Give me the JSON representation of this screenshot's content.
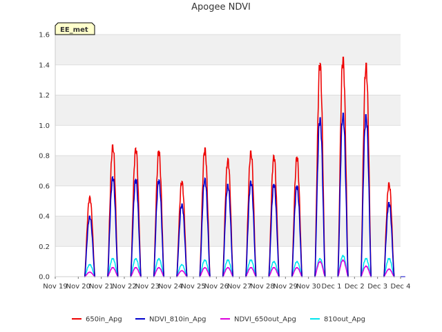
{
  "chart_data": {
    "type": "line",
    "title": "Apogee NDVI",
    "xlabel": "",
    "ylabel": "",
    "badge": "EE_met",
    "ylim": [
      0,
      1.6
    ],
    "yticks": [
      "0.0",
      "0.2",
      "0.4",
      "0.6",
      "0.8",
      "1.0",
      "1.2",
      "1.4",
      "1.6"
    ],
    "xlim": [
      "2023-11-19",
      "2023-12-04"
    ],
    "xticks": [
      "Nov 19",
      "Nov 20",
      "Nov 21",
      "Nov 22",
      "Nov 23",
      "Nov 24",
      "Nov 25",
      "Nov 26",
      "Nov 27",
      "Nov 28",
      "Nov 29",
      "Nov 30",
      "Dec 1",
      "Dec 2",
      "Dec 3",
      "Dec 4"
    ],
    "grid": true,
    "legend_position": "bottom",
    "days": [
      "Nov 20",
      "Nov 21",
      "Nov 22",
      "Nov 23",
      "Nov 24",
      "Nov 25",
      "Nov 26",
      "Nov 27",
      "Nov 28",
      "Nov 29",
      "Nov 30",
      "Dec 1",
      "Dec 2",
      "Dec 3"
    ],
    "daily_peak_hour": 12,
    "series": [
      {
        "name": "650in_Apg",
        "color": "#ee0000",
        "daily_peaks": [
          0.53,
          0.87,
          0.85,
          0.83,
          0.63,
          0.85,
          0.78,
          0.83,
          0.8,
          0.79,
          1.41,
          1.45,
          1.41,
          0.62
        ]
      },
      {
        "name": "NDVI_810in_Apg",
        "color": "#0000cc",
        "daily_peaks": [
          0.4,
          0.66,
          0.64,
          0.64,
          0.48,
          0.65,
          0.61,
          0.63,
          0.61,
          0.6,
          1.05,
          1.08,
          1.07,
          0.49
        ]
      },
      {
        "name": "NDVI_650out_Apg",
        "color": "#dd00dd",
        "daily_peaks": [
          0.03,
          0.06,
          0.06,
          0.06,
          0.04,
          0.06,
          0.06,
          0.06,
          0.06,
          0.06,
          0.1,
          0.11,
          0.07,
          0.05
        ]
      },
      {
        "name": "810out_Apg",
        "color": "#00e5ee",
        "daily_peaks": [
          0.08,
          0.12,
          0.12,
          0.12,
          0.08,
          0.11,
          0.11,
          0.11,
          0.1,
          0.1,
          0.12,
          0.14,
          0.12,
          0.12
        ]
      }
    ]
  }
}
